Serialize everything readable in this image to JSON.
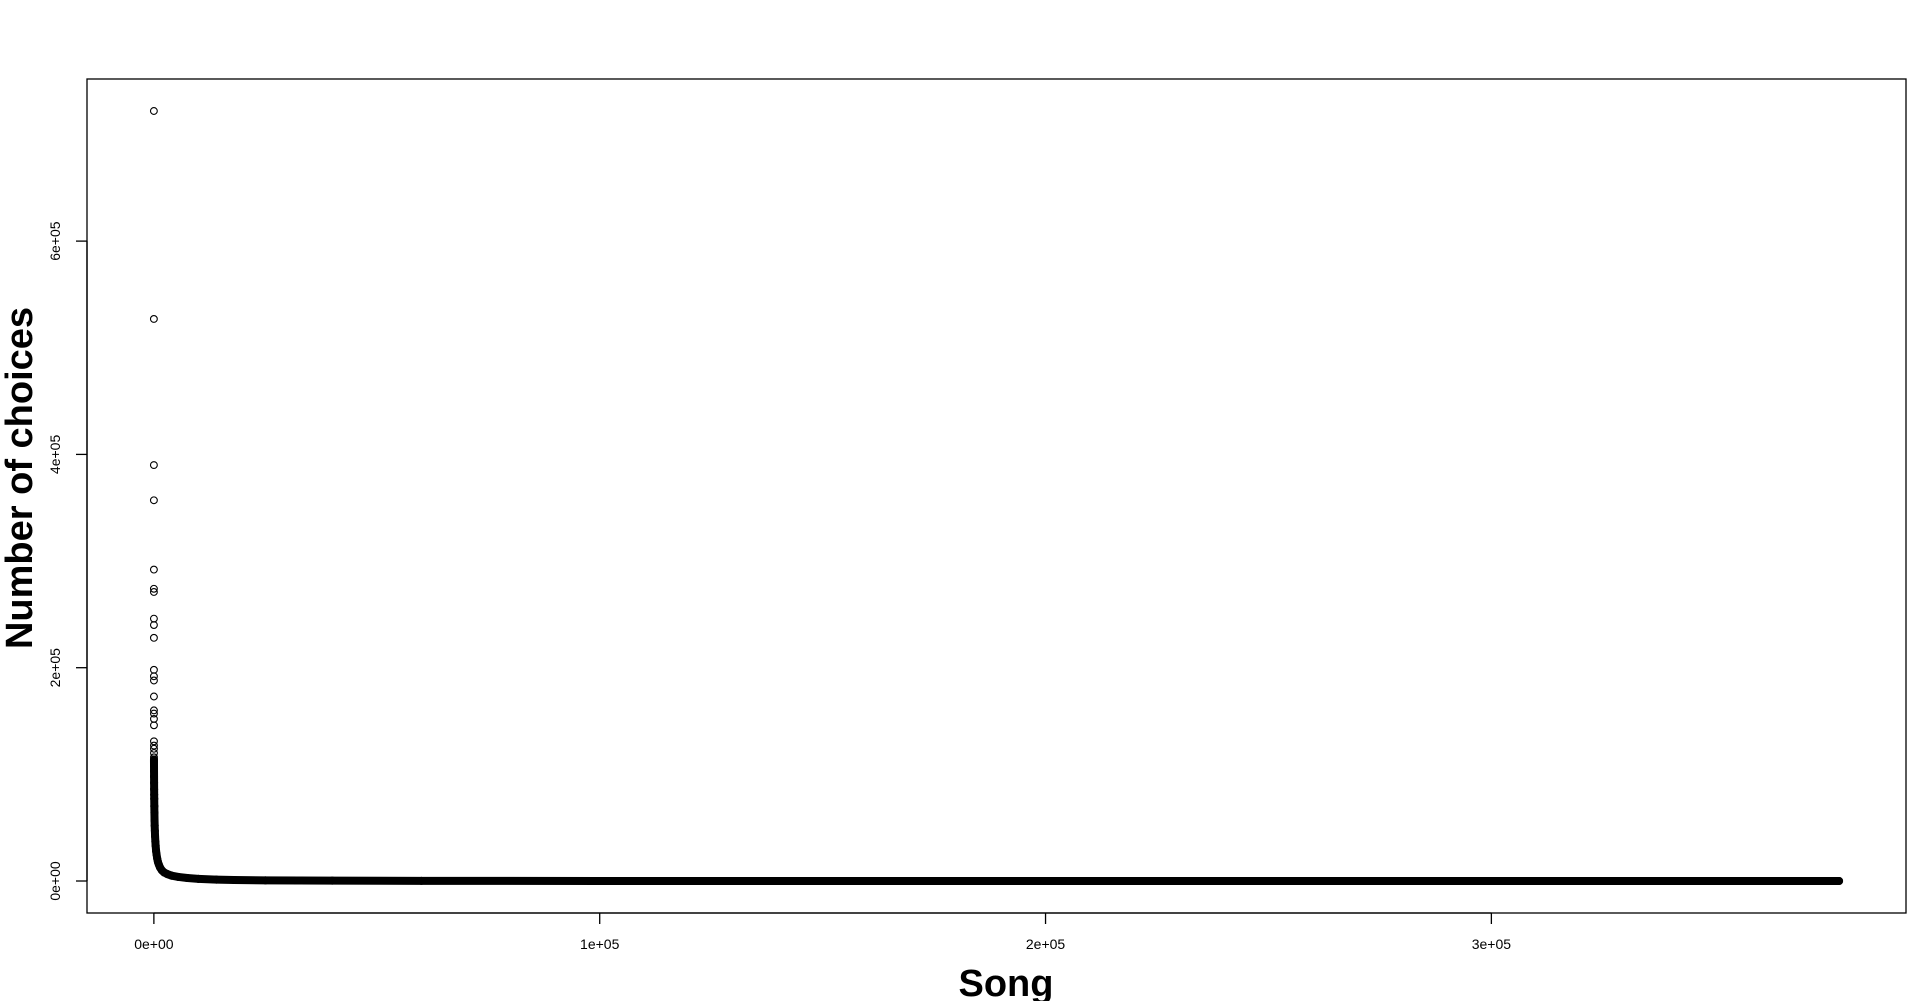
{
  "chart_data": {
    "type": "scatter",
    "title": "",
    "xlabel": "Song",
    "ylabel": "Number of choices",
    "xlim": [
      -15000,
      393000
    ],
    "ylim": [
      -30000,
      752000
    ],
    "x_ticks": [
      {
        "value": 0,
        "label": "0e+00"
      },
      {
        "value": 100000,
        "label": "1e+05"
      },
      {
        "value": 200000,
        "label": "2e+05"
      },
      {
        "value": 300000,
        "label": "3e+05"
      }
    ],
    "y_ticks": [
      {
        "value": 0,
        "label": "0e+00"
      },
      {
        "value": 200000,
        "label": "2e+05"
      },
      {
        "value": 400000,
        "label": "4e+05"
      },
      {
        "value": 600000,
        "label": "6e+05"
      }
    ],
    "grid": false,
    "legend": "none",
    "n_points": 378000,
    "series": [
      {
        "marker": "open-circle",
        "color": "#000000",
        "points": [
          [
            1,
            722000
          ],
          [
            2,
            527000
          ],
          [
            3,
            390000
          ],
          [
            4,
            357000
          ],
          [
            5,
            292000
          ],
          [
            6,
            274000
          ],
          [
            7,
            271000
          ],
          [
            8,
            246000
          ],
          [
            9,
            240000
          ],
          [
            10,
            228000
          ],
          [
            11,
            198000
          ],
          [
            12,
            192000
          ],
          [
            13,
            188000
          ],
          [
            14,
            173000
          ],
          [
            15,
            160000
          ],
          [
            16,
            157000
          ],
          [
            17,
            152000
          ],
          [
            18,
            146000
          ],
          [
            19,
            131000
          ],
          [
            20,
            127000
          ],
          [
            21,
            124000
          ],
          [
            22,
            120000
          ],
          [
            23,
            116000
          ],
          [
            24,
            114000
          ],
          [
            25,
            112000
          ],
          [
            30,
            108000
          ],
          [
            35,
            103000
          ],
          [
            40,
            98000
          ],
          [
            50,
            92000
          ],
          [
            60,
            86000
          ],
          [
            70,
            81000
          ],
          [
            80,
            77000
          ],
          [
            100,
            70000
          ],
          [
            120,
            64000
          ],
          [
            150,
            57000
          ],
          [
            180,
            52000
          ],
          [
            220,
            47000
          ],
          [
            270,
            42000
          ],
          [
            330,
            37000
          ],
          [
            400,
            33000
          ],
          [
            500,
            28000
          ],
          [
            600,
            25000
          ],
          [
            750,
            21000
          ],
          [
            900,
            18000
          ],
          [
            1100,
            15500
          ],
          [
            1400,
            12500
          ],
          [
            1800,
            10000
          ],
          [
            2300,
            8000
          ],
          [
            3000,
            6500
          ],
          [
            4000,
            5000
          ],
          [
            5500,
            3800
          ],
          [
            7500,
            2800
          ],
          [
            10000,
            2000
          ],
          [
            14000,
            1300
          ],
          [
            18000,
            900
          ],
          [
            25000,
            600
          ],
          [
            40000,
            300
          ],
          [
            60000,
            150
          ],
          [
            100000,
            60
          ],
          [
            150000,
            30
          ],
          [
            200000,
            15
          ],
          [
            250000,
            8
          ],
          [
            300000,
            5
          ],
          [
            350000,
            3
          ],
          [
            378000,
            1
          ]
        ]
      }
    ]
  }
}
